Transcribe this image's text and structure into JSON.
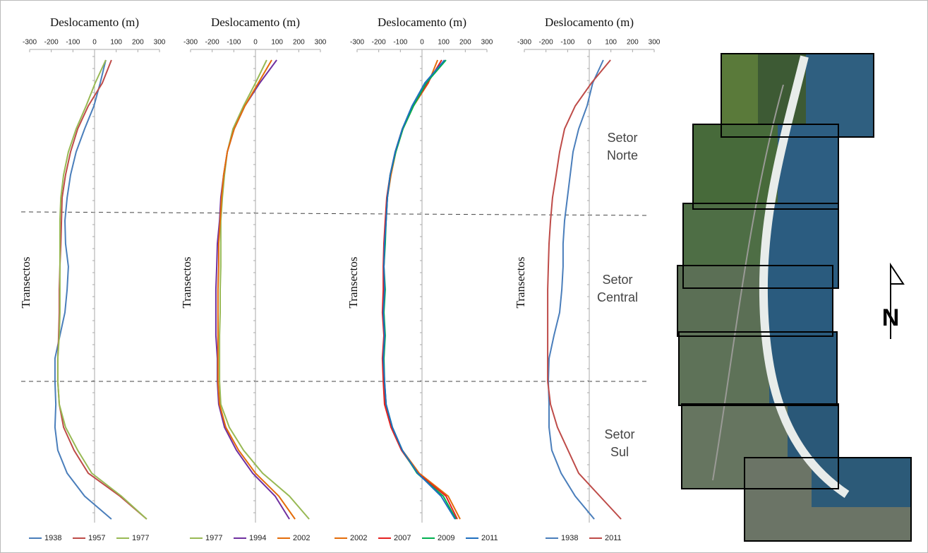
{
  "chart_data": [
    {
      "type": "line",
      "title": "Deslocamento (m)",
      "ylabel": "Transectos",
      "xlim": [
        -300,
        300
      ],
      "xticks": [
        -300,
        -200,
        -100,
        0,
        100,
        200,
        300
      ],
      "series": [
        {
          "name": "1938",
          "color": "#4a7ebb",
          "values": [
            52,
            26,
            -3,
            -46,
            -85,
            -111,
            -127,
            -137,
            -134,
            -121,
            -127,
            -137,
            -160,
            -183,
            -183,
            -179,
            -183,
            -170,
            -127,
            -46,
            78
          ]
        },
        {
          "name": "1957",
          "color": "#be4b48",
          "values": [
            78,
            36,
            -29,
            -78,
            -111,
            -134,
            -150,
            -153,
            -156,
            -160,
            -163,
            -163,
            -166,
            -170,
            -170,
            -163,
            -143,
            -95,
            -29,
            117,
            241
          ]
        },
        {
          "name": "1977",
          "color": "#98b954",
          "values": [
            52,
            3,
            -39,
            -85,
            -121,
            -143,
            -156,
            -160,
            -160,
            -160,
            -160,
            -160,
            -163,
            -170,
            -170,
            -163,
            -134,
            -78,
            -13,
            124,
            241
          ]
        }
      ]
    },
    {
      "type": "line",
      "title": "Deslocamento (m)",
      "ylabel": "Transectos",
      "xlim": [
        -300,
        300
      ],
      "xticks": [
        -300,
        -200,
        -100,
        0,
        100,
        200,
        300
      ],
      "series": [
        {
          "name": "1977",
          "color": "#98b954",
          "values": [
            52,
            0,
            -55,
            -104,
            -130,
            -143,
            -153,
            -160,
            -160,
            -160,
            -163,
            -163,
            -166,
            -166,
            -166,
            -160,
            -121,
            -55,
            33,
            157,
            248
          ]
        },
        {
          "name": "1994",
          "color": "#7030a0",
          "values": [
            98,
            20,
            -49,
            -98,
            -130,
            -147,
            -160,
            -166,
            -176,
            -179,
            -183,
            -183,
            -183,
            -176,
            -176,
            -170,
            -143,
            -88,
            -13,
            91,
            157
          ]
        },
        {
          "name": "2002",
          "color": "#e46c0a",
          "values": [
            75,
            13,
            -49,
            -98,
            -130,
            -147,
            -157,
            -163,
            -170,
            -170,
            -173,
            -173,
            -173,
            -173,
            -173,
            -166,
            -137,
            -78,
            0,
            108,
            183
          ]
        }
      ]
    },
    {
      "type": "line",
      "title": "Deslocamento (m)",
      "ylabel": "Transectos",
      "xlim": [
        -300,
        300
      ],
      "xticks": [
        -300,
        -200,
        -100,
        0,
        100,
        200,
        300
      ],
      "series": [
        {
          "name": "2002",
          "color": "#e46c0a",
          "values": [
            72,
            29,
            -39,
            -88,
            -121,
            -143,
            -160,
            -166,
            -173,
            -176,
            -176,
            -176,
            -173,
            -176,
            -176,
            -170,
            -140,
            -91,
            -13,
            121,
            176
          ]
        },
        {
          "name": "2007",
          "color": "#e52020",
          "values": [
            91,
            26,
            -42,
            -91,
            -124,
            -147,
            -163,
            -170,
            -176,
            -179,
            -179,
            -183,
            -176,
            -183,
            -179,
            -173,
            -143,
            -95,
            -20,
            111,
            163
          ]
        },
        {
          "name": "2009",
          "color": "#00b050",
          "values": [
            111,
            20,
            -39,
            -88,
            -121,
            -147,
            -160,
            -166,
            -170,
            -176,
            -170,
            -176,
            -170,
            -176,
            -173,
            -166,
            -137,
            -91,
            -23,
            98,
            157
          ]
        },
        {
          "name": "2011",
          "color": "#1f6fbf",
          "values": [
            104,
            13,
            -46,
            -91,
            -124,
            -147,
            -160,
            -166,
            -173,
            -176,
            -173,
            -179,
            -173,
            -179,
            -173,
            -166,
            -137,
            -91,
            -20,
            88,
            153
          ]
        }
      ]
    },
    {
      "type": "line",
      "title": "Deslocamento (m)",
      "ylabel": "Transectos",
      "xlim": [
        -300,
        300
      ],
      "xticks": [
        -300,
        -200,
        -100,
        0,
        100,
        200,
        300
      ],
      "series": [
        {
          "name": "1938",
          "color": "#4a7ebb",
          "values": [
            65,
            16,
            -10,
            -49,
            -75,
            -88,
            -101,
            -114,
            -121,
            -121,
            -127,
            -137,
            -163,
            -186,
            -189,
            -186,
            -186,
            -173,
            -130,
            -65,
            23
          ]
        },
        {
          "name": "2011",
          "color": "#be4b48",
          "values": [
            98,
            10,
            -65,
            -114,
            -137,
            -153,
            -170,
            -179,
            -186,
            -189,
            -192,
            -192,
            -192,
            -192,
            -192,
            -179,
            -147,
            -98,
            -49,
            49,
            147
          ]
        }
      ]
    }
  ],
  "sectors": [
    [
      "Setor",
      "Norte"
    ],
    [
      "Setor",
      "Central"
    ],
    [
      "Setor",
      "Sul"
    ]
  ],
  "north": "N"
}
